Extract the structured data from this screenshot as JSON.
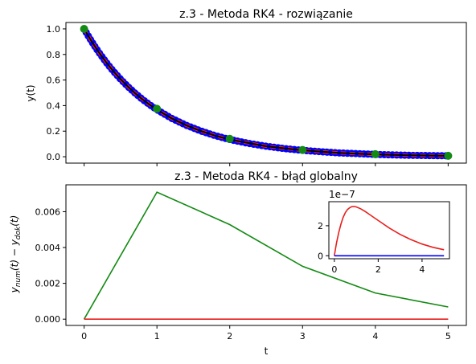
{
  "chart_data": [
    {
      "type": "line",
      "title": "z.3 - Metoda RK4 - rozwiązanie",
      "xlabel": "",
      "ylabel": "y(t)",
      "xlim": [
        -0.25,
        5.25
      ],
      "ylim": [
        -0.05,
        1.05
      ],
      "xticks": [
        0,
        1,
        2,
        3,
        4,
        5
      ],
      "yticks": [
        0.0,
        0.2,
        0.4,
        0.6,
        0.8,
        1.0
      ],
      "ytick_labels": [
        "0.0",
        "0.2",
        "0.4",
        "0.6",
        "0.8",
        "1.0"
      ],
      "grid": false,
      "legend": "none",
      "series": [
        {
          "style": "dense dots",
          "color": "#0000ff",
          "x": [
            0,
            0.05,
            0.1,
            0.15,
            0.2,
            0.25,
            0.3,
            0.35,
            0.4,
            0.45,
            0.5,
            0.6,
            0.7,
            0.8,
            0.9,
            1.0,
            1.2,
            1.4,
            1.6,
            1.8,
            2.0,
            2.25,
            2.5,
            2.75,
            3.0,
            3.25,
            3.5,
            3.75,
            4.0,
            4.25,
            4.5,
            4.75,
            5.0
          ],
          "y": [
            1.0,
            0.951,
            0.905,
            0.861,
            0.819,
            0.779,
            0.741,
            0.705,
            0.67,
            0.638,
            0.607,
            0.549,
            0.497,
            0.449,
            0.407,
            0.368,
            0.301,
            0.247,
            0.202,
            0.165,
            0.135,
            0.105,
            0.082,
            0.064,
            0.05,
            0.039,
            0.03,
            0.024,
            0.018,
            0.014,
            0.011,
            0.009,
            0.007
          ]
        },
        {
          "style": "dashed",
          "color": "#e8201e",
          "x": [
            0,
            0.1,
            0.2,
            0.3,
            0.4,
            0.5,
            0.6,
            0.7,
            0.8,
            0.9,
            1.0,
            1.2,
            1.4,
            1.6,
            1.8,
            2.0,
            2.5,
            3.0,
            3.5,
            4.0,
            4.5,
            5.0
          ],
          "y": [
            1.0,
            0.905,
            0.819,
            0.741,
            0.67,
            0.607,
            0.549,
            0.497,
            0.449,
            0.407,
            0.368,
            0.301,
            0.247,
            0.202,
            0.165,
            0.135,
            0.082,
            0.05,
            0.03,
            0.018,
            0.011,
            0.007
          ]
        },
        {
          "style": "solid",
          "color": "#000000",
          "x": [
            0,
            0.1,
            0.2,
            0.3,
            0.4,
            0.5,
            0.6,
            0.7,
            0.8,
            0.9,
            1.0,
            1.2,
            1.4,
            1.6,
            1.8,
            2.0,
            2.5,
            3.0,
            3.5,
            4.0,
            4.5,
            5.0
          ],
          "y": [
            1.0,
            0.905,
            0.819,
            0.741,
            0.67,
            0.607,
            0.549,
            0.497,
            0.449,
            0.407,
            0.368,
            0.301,
            0.247,
            0.202,
            0.165,
            0.135,
            0.082,
            0.05,
            0.03,
            0.018,
            0.011,
            0.007
          ]
        },
        {
          "style": "markers",
          "color": "#138a13",
          "x": [
            0,
            1,
            2,
            3,
            4,
            5
          ],
          "y": [
            1.0,
            0.375,
            0.14,
            0.053,
            0.02,
            0.007
          ]
        }
      ]
    },
    {
      "type": "line",
      "title": "z.3 - Metoda RK4 - błąd globalny",
      "xlabel": "t",
      "ylabel_main": "y",
      "ylabel_sub1": "num",
      "ylabel_mid": "(t) − y",
      "ylabel_sub2": "dok",
      "ylabel_end": "(t)",
      "xlim": [
        -0.25,
        5.25
      ],
      "ylim": [
        -0.00035,
        0.0075
      ],
      "xticks": [
        0,
        1,
        2,
        3,
        4,
        5
      ],
      "yticks": [
        0,
        0.002,
        0.004,
        0.006
      ],
      "ytick_labels": [
        "0.000",
        "0.002",
        "0.004",
        "0.006"
      ],
      "grid": false,
      "legend": "none",
      "series": [
        {
          "style": "solid",
          "color": "#138a13",
          "x": [
            0,
            1,
            2,
            3,
            4,
            5
          ],
          "y": [
            0,
            0.00709,
            0.00528,
            0.00295,
            0.00146,
            0.00068
          ]
        },
        {
          "style": "solid",
          "color": "#e8201e",
          "x": [
            0,
            5
          ],
          "y": [
            0,
            0
          ]
        }
      ]
    },
    {
      "type": "line",
      "title": "",
      "offset_text": "1e−7",
      "xlim": [
        -0.25,
        5.25
      ],
      "ylim": [
        -0.2,
        3.6
      ],
      "xticks": [
        0,
        2,
        4
      ],
      "yticks": [
        0,
        2
      ],
      "ytick_labels": [
        "0",
        "2"
      ],
      "grid": false,
      "legend": "none",
      "series": [
        {
          "style": "solid",
          "color": "#e8201e",
          "x": [
            0,
            0.1,
            0.2,
            0.3,
            0.4,
            0.5,
            0.6,
            0.7,
            0.8,
            0.9,
            1.0,
            1.2,
            1.4,
            1.6,
            1.8,
            2.0,
            2.5,
            3.0,
            3.5,
            4.0,
            4.5,
            5.0
          ],
          "y": [
            0,
            0.85,
            1.55,
            2.1,
            2.55,
            2.87,
            3.08,
            3.2,
            3.27,
            3.28,
            3.25,
            3.13,
            2.95,
            2.75,
            2.55,
            2.35,
            1.85,
            1.42,
            1.07,
            0.78,
            0.56,
            0.4
          ]
        },
        {
          "style": "solid",
          "color": "#0000ff",
          "x": [
            0,
            5
          ],
          "y": [
            0,
            0
          ]
        }
      ]
    }
  ]
}
